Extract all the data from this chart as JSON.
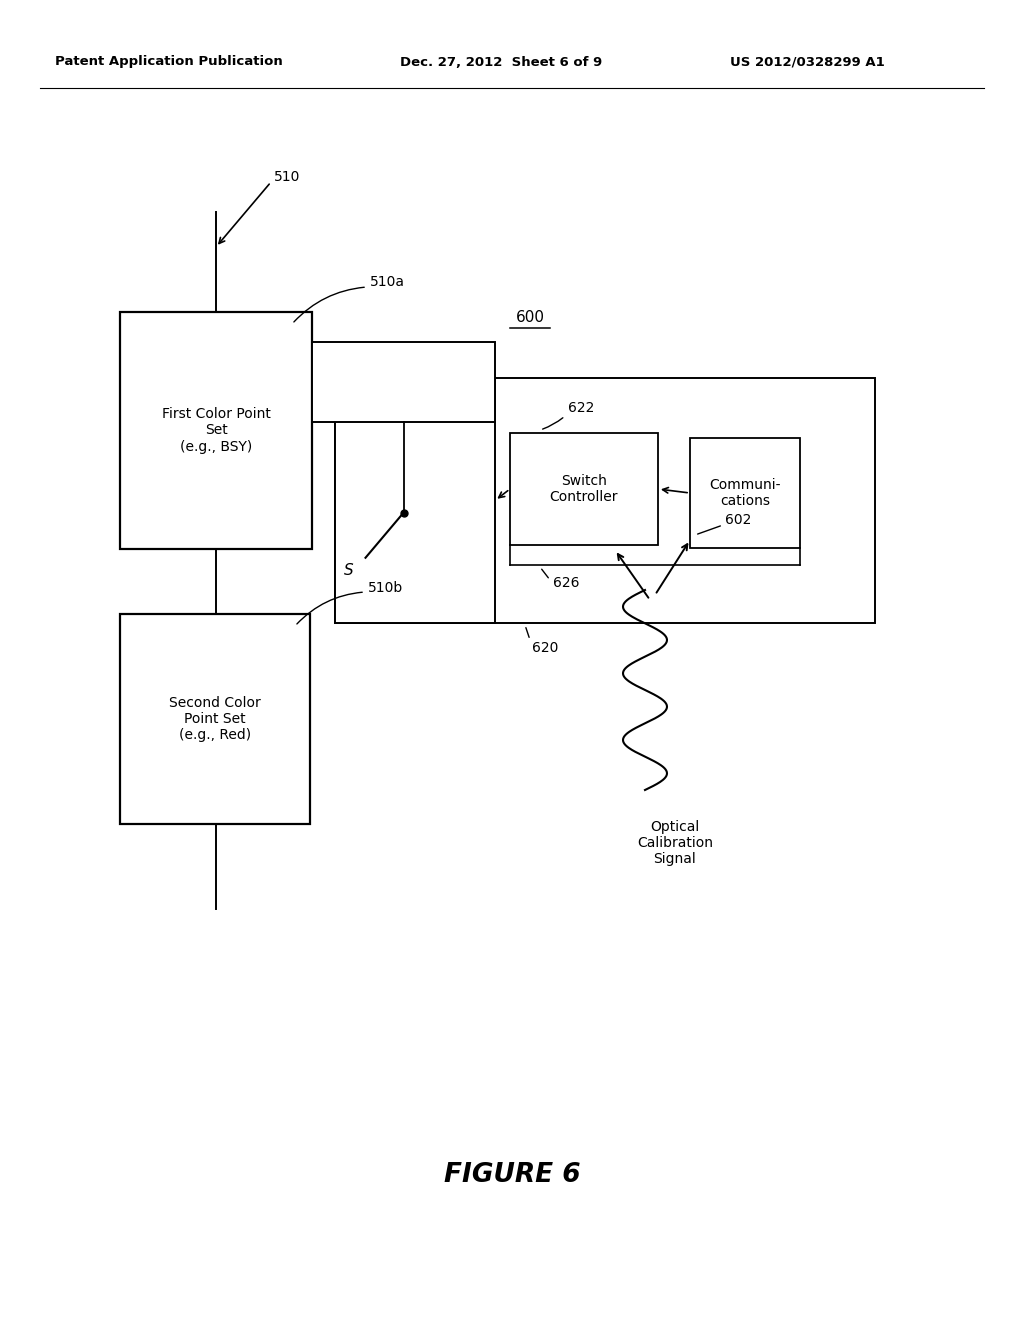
{
  "bg_color": "#ffffff",
  "header_left": "Patent Application Publication",
  "header_mid": "Dec. 27, 2012  Sheet 6 of 9",
  "header_right": "US 2012/0328299 A1",
  "figure_label": "FIGURE 6",
  "label_510": "510",
  "label_510a": "510a",
  "label_510b": "510b",
  "label_600": "600",
  "label_620": "620",
  "label_622": "622",
  "label_626": "626",
  "label_602": "602",
  "box_510a_text": "First Color Point\nSet\n(e.g., BSY)",
  "box_510b_text": "Second Color\nPoint Set\n(e.g., Red)",
  "box_switch_text": "Switch\nController",
  "box_comm_text": "Communi-\ncations",
  "optical_text": "Optical\nCalibration\nSignal",
  "switch_label": "S"
}
